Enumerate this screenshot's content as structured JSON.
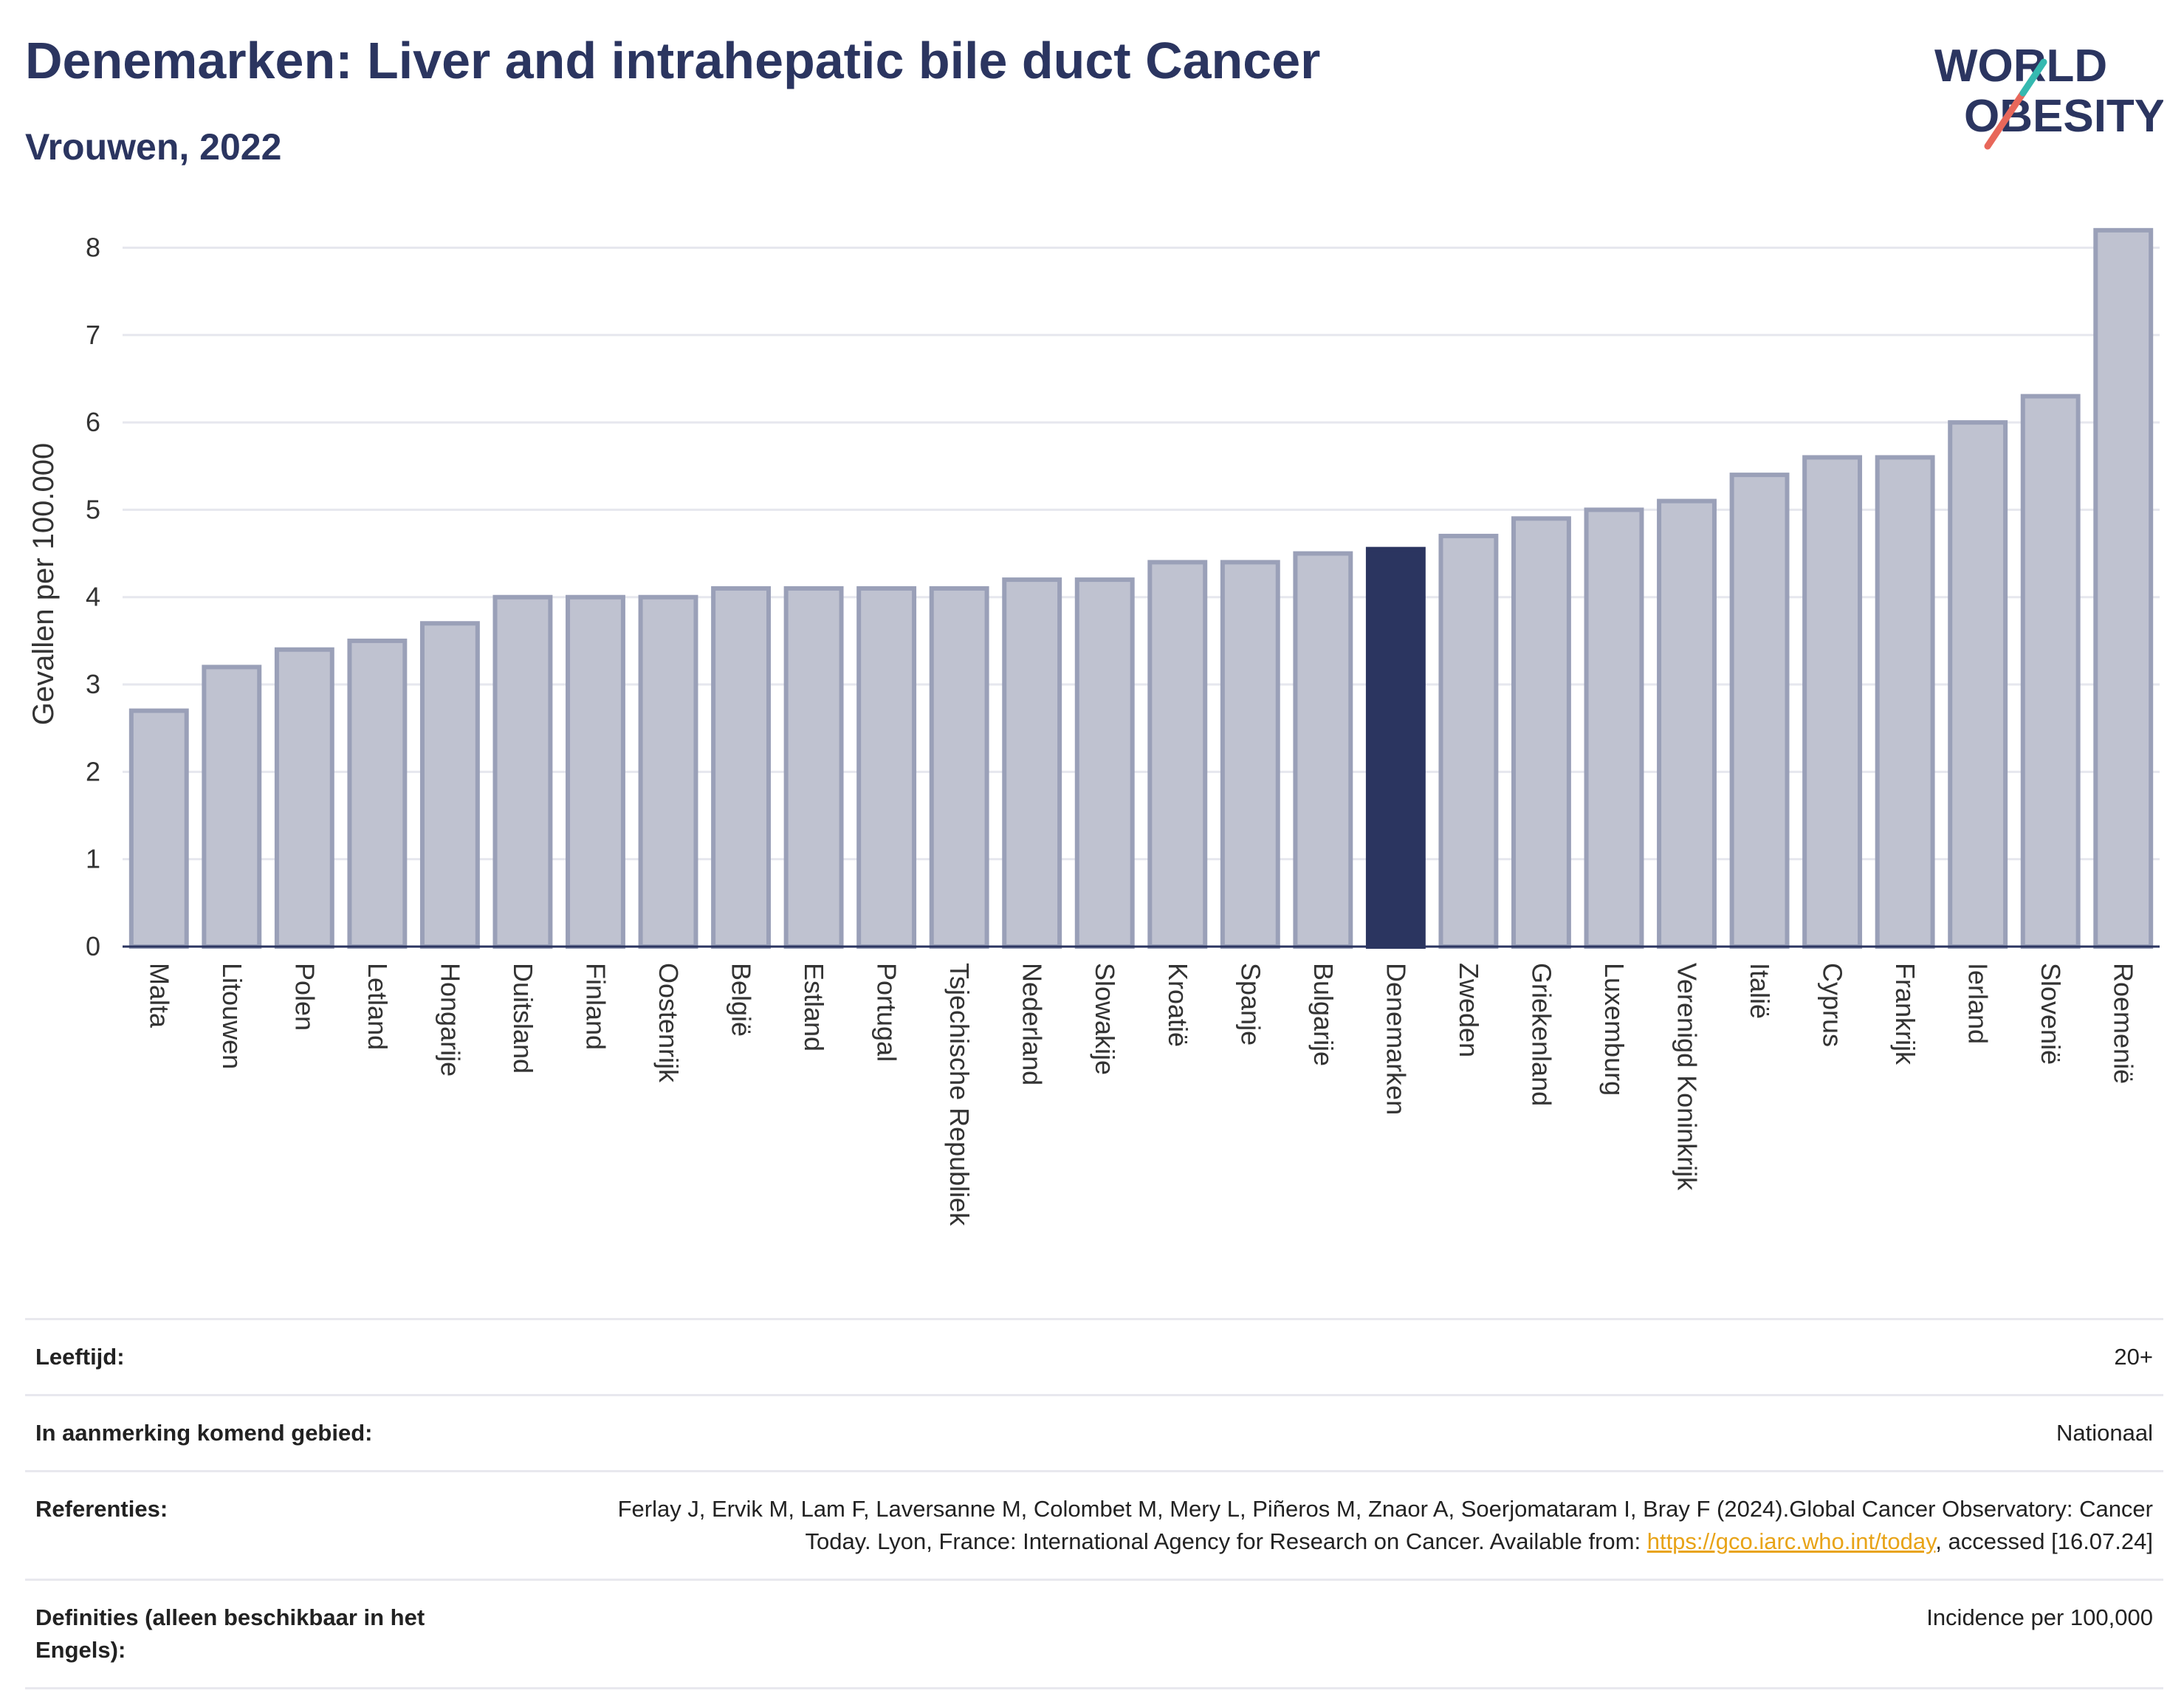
{
  "header": {
    "title": "Denemarken: Liver and intrahepatic bile duct Cancer",
    "subtitle": "Vrouwen, 2022"
  },
  "logo": {
    "line1": "WORLD",
    "line2": "OBESITY"
  },
  "chart_data": {
    "type": "bar",
    "ylabel": "Gevallen per 100.000",
    "xlabel": "",
    "ylim": [
      0,
      8.3
    ],
    "yticks": [
      0,
      1,
      2,
      3,
      4,
      5,
      6,
      7,
      8
    ],
    "grid": true,
    "highlight": "Denemarken",
    "colors": {
      "bar": "#bfc2d0",
      "bar_border": "#9aa0b8",
      "highlight": "#2b3560"
    },
    "categories": [
      "Malta",
      "Litouwen",
      "Polen",
      "Letland",
      "Hongarije",
      "Duitsland",
      "Finland",
      "Oostenrijk",
      "België",
      "Estland",
      "Portugal",
      "Tsjechische Republiek",
      "Nederland",
      "Slowakije",
      "Kroatië",
      "Spanje",
      "Bulgarije",
      "Denemarken",
      "Zweden",
      "Griekenland",
      "Luxemburg",
      "Verenigd Koninkrijk",
      "Italië",
      "Cyprus",
      "Frankrijk",
      "Ierland",
      "Slovenië",
      "Roemenië"
    ],
    "values": [
      2.7,
      3.2,
      3.4,
      3.5,
      3.7,
      4.0,
      4.0,
      4.0,
      4.1,
      4.1,
      4.1,
      4.1,
      4.2,
      4.2,
      4.4,
      4.4,
      4.5,
      4.55,
      4.7,
      4.9,
      5.0,
      5.1,
      5.4,
      5.6,
      5.6,
      6.0,
      6.3,
      8.2
    ]
  },
  "info": {
    "age_label": "Leeftijd:",
    "age_value": "20+",
    "area_label": "In aanmerking komend gebied:",
    "area_value": "Nationaal",
    "ref_label": "Referenties:",
    "ref_text_1": "Ferlay J, Ervik M, Lam F, Laversanne M, Colombet M, Mery L, Piñeros M, Znaor A, Soerjomataram I, Bray F (2024).Global Cancer Observatory: Cancer Today. Lyon, France: International Agency for Research on Cancer. Available from: ",
    "ref_link": "https://gco.iarc.who.int/today",
    "ref_text_2": ", accessed [16.07.24]",
    "def_label": "Definities (alleen beschikbaar in het Engels):",
    "def_value": "Incidence per 100,000"
  }
}
